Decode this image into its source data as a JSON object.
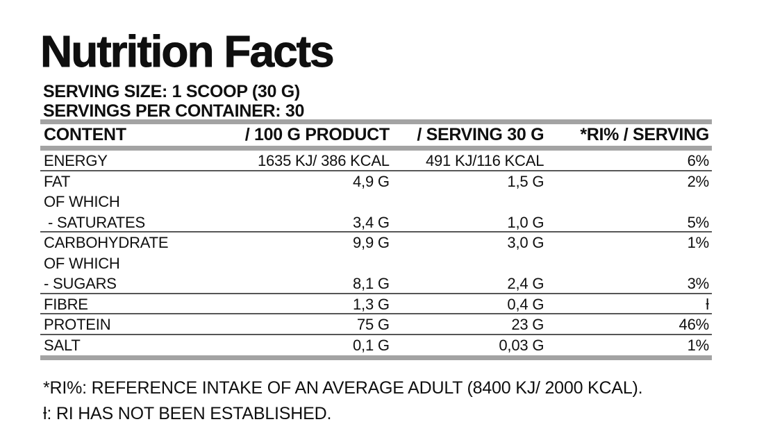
{
  "title": "Nutrition Facts",
  "serving": {
    "size_line": "SERVING SIZE: 1 SCOOP (30 G)",
    "per_container_line": "SERVINGS PER CONTAINER: 30"
  },
  "table": {
    "headers": [
      "CONTENT",
      "/ 100 G PRODUCT",
      "/ SERVING 30 G",
      "*RI% / SERVING"
    ],
    "rows": [
      {
        "content": "ENERGY",
        "per_100g": "1635 KJ/ 386 KCAL",
        "per_serving": "491 KJ/116 KCAL",
        "ri_percent": "6%",
        "separator_after": true,
        "indent": false
      },
      {
        "content": "FAT",
        "per_100g": "4,9 G",
        "per_serving": "1,5 G",
        "ri_percent": "2%",
        "separator_after": false,
        "indent": false
      },
      {
        "content": "OF WHICH",
        "per_100g": "",
        "per_serving": "",
        "ri_percent": "",
        "separator_after": false,
        "indent": false
      },
      {
        "content": "- SATURATES",
        "per_100g": "3,4 G",
        "per_serving": "1,0 G",
        "ri_percent": "5%",
        "separator_after": true,
        "indent": true
      },
      {
        "content": "CARBOHYDRATE",
        "per_100g": "9,9 G",
        "per_serving": "3,0 G",
        "ri_percent": "1%",
        "separator_after": false,
        "indent": false
      },
      {
        "content": "OF WHICH",
        "per_100g": "",
        "per_serving": "",
        "ri_percent": "",
        "separator_after": false,
        "indent": false
      },
      {
        "content": "- SUGARS",
        "per_100g": "8,1 G",
        "per_serving": "2,4 G",
        "ri_percent": "3%",
        "separator_after": true,
        "indent": false
      },
      {
        "content": "FIBRE",
        "per_100g": "1,3 G",
        "per_serving": "0,4 G",
        "ri_percent": "ƚ",
        "separator_after": true,
        "indent": false
      },
      {
        "content": "PROTEIN",
        "per_100g": "75 G",
        "per_serving": "23 G",
        "ri_percent": "46%",
        "separator_after": true,
        "indent": false
      },
      {
        "content": "SALT",
        "per_100g": "0,1 G",
        "per_serving": "0,03 G",
        "ri_percent": "1%",
        "separator_after": false,
        "indent": false
      }
    ]
  },
  "footnotes": [
    "*RI%: REFERENCE INTAKE OF AN AVERAGE ADULT (8400 KJ/ 2000 KCAL).",
    "ƚ: RI HAS NOT BEEN ESTABLISHED."
  ],
  "colors": {
    "background": "#ffffff",
    "text": "#0f0f0f",
    "bar_gray": "#a3a3a3",
    "separator_line": "#565656"
  }
}
